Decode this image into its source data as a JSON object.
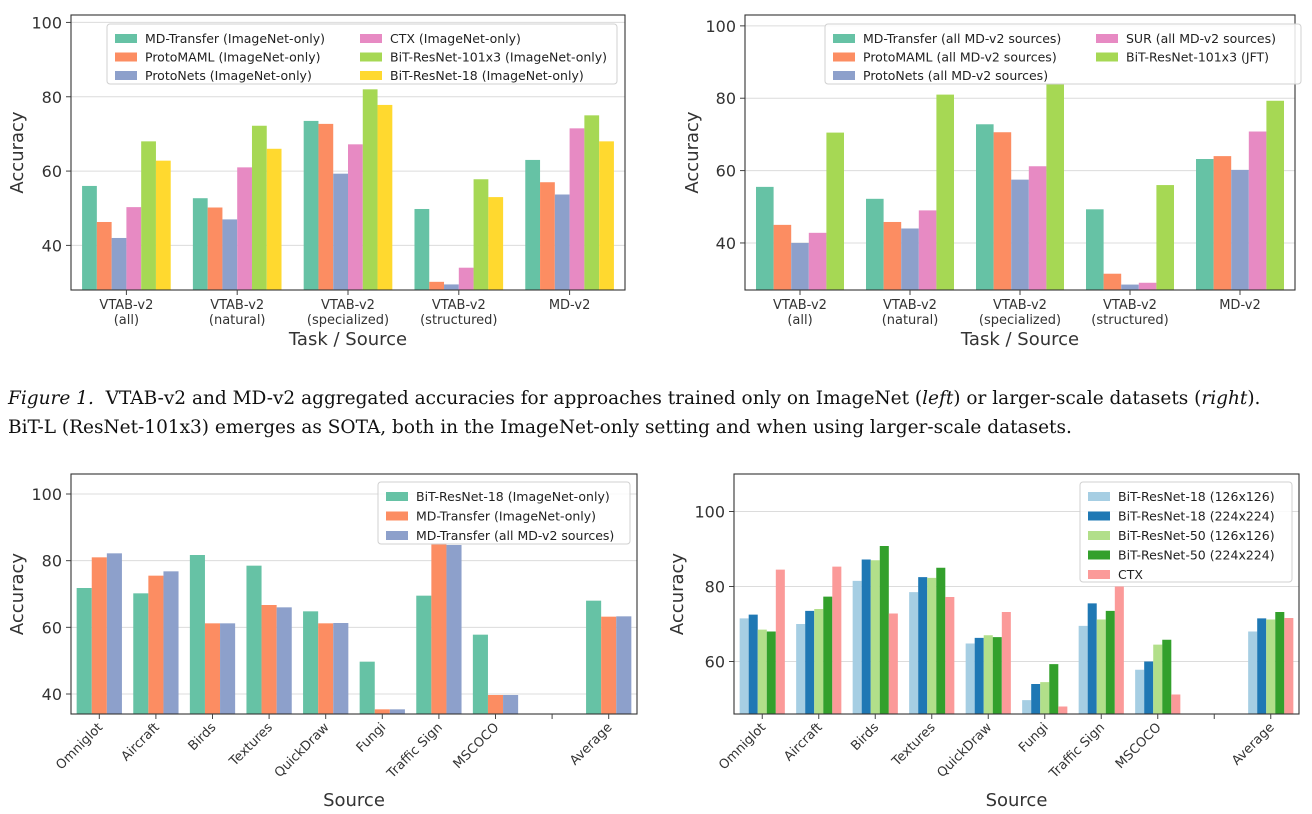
{
  "chart_data": [
    {
      "type": "bar",
      "categories": [
        "VTAB-v2\n(all)",
        "VTAB-v2\n(natural)",
        "VTAB-v2\n(specialized)",
        "VTAB-v2\n(structured)",
        "MD-v2"
      ],
      "series": [
        {
          "name": "MD-Transfer (ImageNet-only)",
          "color": "#66c2a5",
          "values": [
            56,
            52.7,
            73.5,
            49.8,
            63
          ]
        },
        {
          "name": "ProtoMAML (ImageNet-only)",
          "color": "#fc8d62",
          "values": [
            46.3,
            50.2,
            72.7,
            30.2,
            57
          ]
        },
        {
          "name": "ProtoNets (ImageNet-only)",
          "color": "#8da0cb",
          "values": [
            42,
            47,
            59.3,
            29.5,
            53.7
          ]
        },
        {
          "name": "CTX (ImageNet-only)",
          "color": "#e78ac3",
          "values": [
            50.3,
            61,
            67.2,
            34,
            71.5
          ]
        },
        {
          "name": "BiT-ResNet-101x3 (ImageNet-only)",
          "color": "#a6d854",
          "values": [
            68,
            72.2,
            82,
            57.8,
            75
          ]
        },
        {
          "name": "BiT-ResNet-18 (ImageNet-only)",
          "color": "#ffd92f",
          "values": [
            62.8,
            66,
            77.8,
            53,
            68
          ]
        }
      ],
      "xlabel": "Task / Source",
      "ylabel": "Accuracy",
      "ylim": [
        28,
        102
      ],
      "yticks": [
        40,
        60,
        80,
        100
      ],
      "grid": "y",
      "legend": {
        "placement": "top",
        "ncol": 2
      }
    },
    {
      "type": "bar",
      "categories": [
        "VTAB-v2\n(all)",
        "VTAB-v2\n(natural)",
        "VTAB-v2\n(specialized)",
        "VTAB-v2\n(structured)",
        "MD-v2"
      ],
      "series": [
        {
          "name": "MD-Transfer (all MD-v2 sources)",
          "color": "#66c2a5",
          "values": [
            55.5,
            52.2,
            72.8,
            49.3,
            63.2
          ]
        },
        {
          "name": "ProtoMAML (all MD-v2 sources)",
          "color": "#fc8d62",
          "values": [
            45,
            45.8,
            70.6,
            31.5,
            64
          ]
        },
        {
          "name": "ProtoNets (all MD-v2 sources)",
          "color": "#8da0cb",
          "values": [
            40,
            44,
            57.5,
            28.5,
            60.2
          ]
        },
        {
          "name": "SUR (all MD-v2 sources)",
          "color": "#e78ac3",
          "values": [
            42.8,
            49,
            61.2,
            29,
            70.8
          ]
        },
        {
          "name": "BiT-ResNet-101x3 (JFT)",
          "color": "#a6d854",
          "values": [
            70.5,
            81,
            83.8,
            56,
            79.3
          ]
        }
      ],
      "xlabel": "Task / Source",
      "ylabel": "Accuracy",
      "ylim": [
        27,
        103
      ],
      "yticks": [
        40,
        60,
        80,
        100
      ],
      "grid": "y",
      "legend": {
        "placement": "top",
        "ncol": 2
      }
    },
    {
      "type": "bar",
      "categories": [
        "Omniglot",
        "Aircraft",
        "Birds",
        "Textures",
        "QuickDraw",
        "Fungi",
        "Traffic Sign",
        "MSCOCO",
        "",
        "Average"
      ],
      "series": [
        {
          "name": "BiT-ResNet-18 (ImageNet-only)",
          "color": "#66c2a5",
          "values": [
            71.8,
            70.2,
            81.7,
            78.5,
            64.8,
            49.7,
            69.5,
            57.8,
            null,
            68
          ]
        },
        {
          "name": "MD-Transfer (ImageNet-only)",
          "color": "#fc8d62",
          "values": [
            81,
            75.5,
            61.2,
            66.7,
            61.2,
            35.4,
            85.2,
            39.7,
            null,
            63.2
          ]
        },
        {
          "name": "MD-Transfer (all MD-v2 sources)",
          "color": "#8da0cb",
          "values": [
            82.2,
            76.8,
            61.2,
            66,
            61.3,
            35.4,
            84.7,
            39.7,
            null,
            63.3
          ]
        }
      ],
      "xlabel": "Source",
      "ylabel": "Accuracy",
      "ylim": [
        34,
        106
      ],
      "yticks": [
        40,
        60,
        80,
        100
      ],
      "grid": "y",
      "legend": {
        "placement": "top-right",
        "ncol": 1
      }
    },
    {
      "type": "bar",
      "categories": [
        "Omniglot",
        "Aircraft",
        "Birds",
        "Textures",
        "QuickDraw",
        "Fungi",
        "Traffic Sign",
        "MSCOCO",
        "",
        "Average"
      ],
      "series": [
        {
          "name": "BiT-ResNet-18 (126x126)",
          "color": "#a6cee3",
          "values": [
            71.5,
            70,
            81.5,
            78.5,
            64.8,
            49.7,
            69.5,
            57.8,
            null,
            68
          ]
        },
        {
          "name": "BiT-ResNet-18 (224x224)",
          "color": "#1f78b4",
          "values": [
            72.5,
            73.5,
            87.2,
            82.5,
            66.3,
            54,
            75.5,
            60,
            null,
            71.5
          ]
        },
        {
          "name": "BiT-ResNet-50 (126x126)",
          "color": "#b2df8a",
          "values": [
            68.5,
            74,
            87,
            82.3,
            67,
            54.5,
            71.2,
            64.5,
            null,
            71.2
          ]
        },
        {
          "name": "BiT-ResNet-50 (224x224)",
          "color": "#33a02c",
          "values": [
            68,
            77.3,
            90.8,
            85,
            66.5,
            59.3,
            73.5,
            65.8,
            null,
            73.2
          ]
        },
        {
          "name": "CTX",
          "color": "#fb9a99",
          "values": [
            84.5,
            85.3,
            72.8,
            77.2,
            73.2,
            48,
            80,
            51.2,
            null,
            71.6
          ]
        }
      ],
      "xlabel": "Source",
      "ylabel": "Accuracy",
      "ylim": [
        46,
        110
      ],
      "yticks": [
        60,
        80,
        100
      ],
      "grid": "y",
      "legend": {
        "placement": "top-right",
        "ncol": 1
      }
    }
  ],
  "caption": {
    "figure_label": "Figure 1.",
    "line1_text": "VTAB-v2 and MD-v2 aggregated accuracies for approaches trained only on ImageNet (",
    "left_word": "left",
    "line1_mid": ") or larger-scale datasets (",
    "right_word": "right",
    "line1_end": ").",
    "line2": "BiT-L (ResNet-101x3) emerges as SOTA, both in the ImageNet-only setting and when using larger-scale datasets."
  }
}
